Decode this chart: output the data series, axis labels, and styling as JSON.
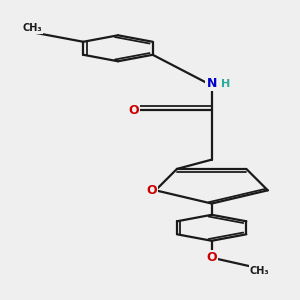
{
  "bg_color": "#efefef",
  "bond_color": "#1a1a1a",
  "bond_width": 1.6,
  "dbo": 0.012,
  "atom_colors": {
    "N": "#0000cc",
    "O": "#cc0000",
    "H": "#2aaa9a",
    "C": "#1a1a1a"
  },
  "font_size": 9,
  "font_size_small": 8
}
